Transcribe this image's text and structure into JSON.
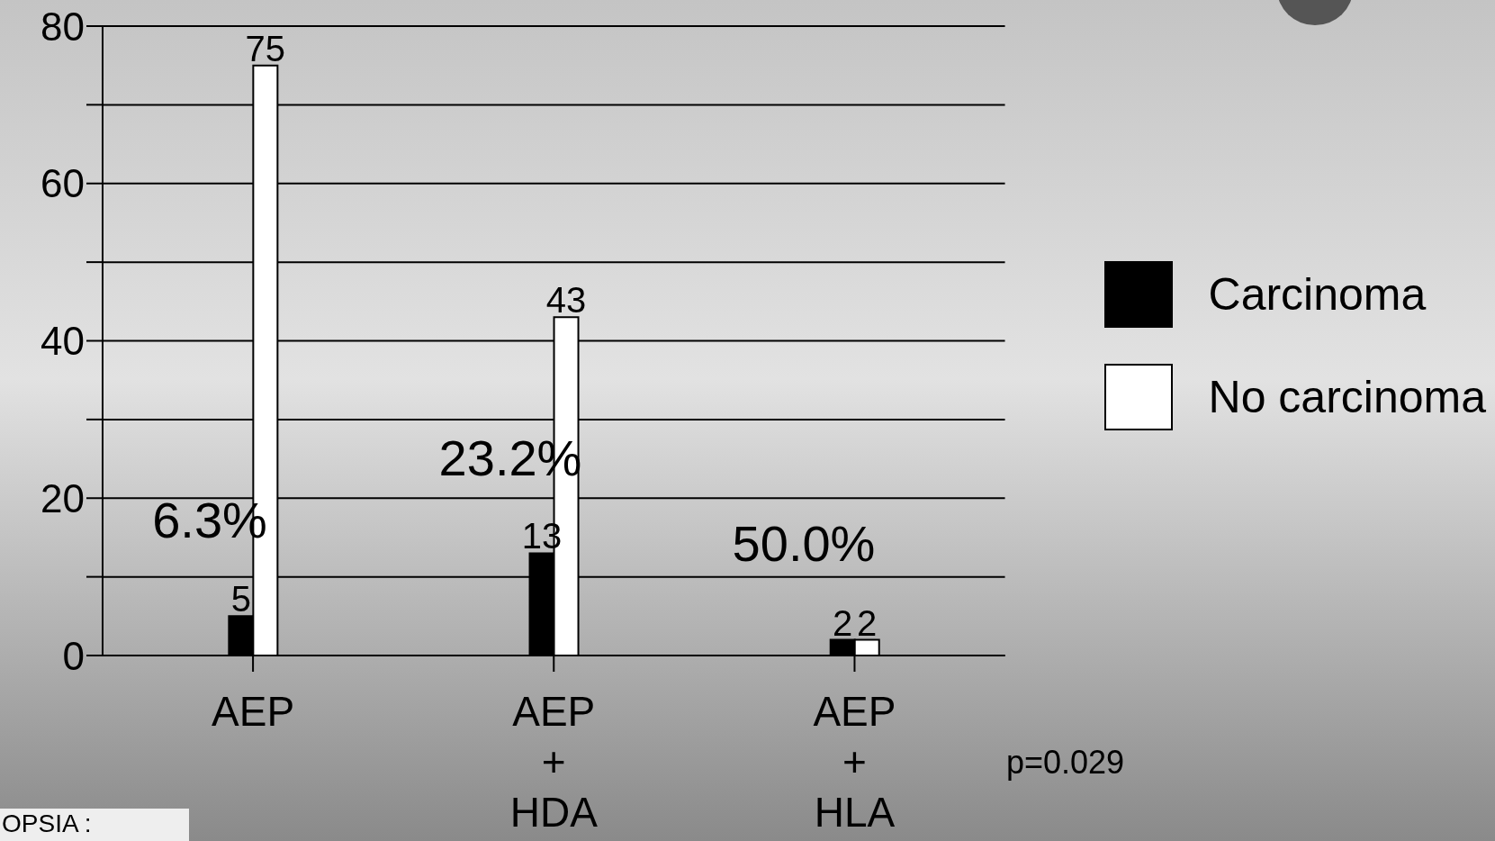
{
  "chart_data": {
    "type": "bar",
    "categories": [
      "AEP",
      "AEP\n+\nHDA",
      "AEP\n+\nHLA"
    ],
    "series": [
      {
        "name": "Carcinoma",
        "color": "#000000",
        "values": [
          5,
          13,
          2
        ]
      },
      {
        "name": "No carcinoma",
        "color": "#ffffff",
        "values": [
          75,
          43,
          2
        ]
      }
    ],
    "ylim": [
      0,
      80
    ],
    "yticks": [
      0,
      {
        "value": 10,
        "label": null
      },
      20,
      {
        "value": 30,
        "label": null
      },
      40,
      {
        "value": 50,
        "label": null
      },
      60,
      {
        "value": 70,
        "label": null
      },
      80
    ],
    "grid": "y",
    "legend": "right",
    "data_labels": true,
    "annotations": [
      "6.3%",
      "23.2%",
      "50.0%",
      "p=0.029",
      "OPSIA :"
    ]
  }
}
